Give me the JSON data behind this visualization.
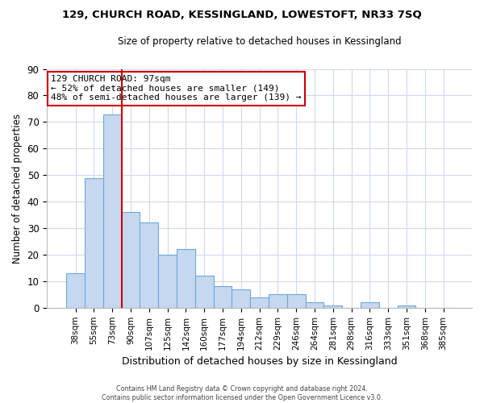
{
  "title1": "129, CHURCH ROAD, KESSINGLAND, LOWESTOFT, NR33 7SQ",
  "title2": "Size of property relative to detached houses in Kessingland",
  "xlabel": "Distribution of detached houses by size in Kessingland",
  "ylabel": "Number of detached properties",
  "bar_labels": [
    "38sqm",
    "55sqm",
    "73sqm",
    "90sqm",
    "107sqm",
    "125sqm",
    "142sqm",
    "160sqm",
    "177sqm",
    "194sqm",
    "212sqm",
    "229sqm",
    "246sqm",
    "264sqm",
    "281sqm",
    "298sqm",
    "316sqm",
    "333sqm",
    "351sqm",
    "368sqm",
    "385sqm"
  ],
  "bar_values": [
    13,
    49,
    73,
    36,
    32,
    20,
    22,
    12,
    8,
    7,
    4,
    5,
    5,
    2,
    1,
    0,
    2,
    0,
    1,
    0,
    0
  ],
  "bar_color": "#c5d8f0",
  "bar_edge_color": "#6ea8d8",
  "vline_color": "#cc0000",
  "ylim": [
    0,
    90
  ],
  "yticks": [
    0,
    10,
    20,
    30,
    40,
    50,
    60,
    70,
    80,
    90
  ],
  "annotation_title": "129 CHURCH ROAD: 97sqm",
  "annotation_line1": "← 52% of detached houses are smaller (149)",
  "annotation_line2": "48% of semi-detached houses are larger (139) →",
  "footer1": "Contains HM Land Registry data © Crown copyright and database right 2024.",
  "footer2": "Contains public sector information licensed under the Open Government Licence v3.0.",
  "background_color": "#ffffff",
  "grid_color": "#d0d8ec"
}
